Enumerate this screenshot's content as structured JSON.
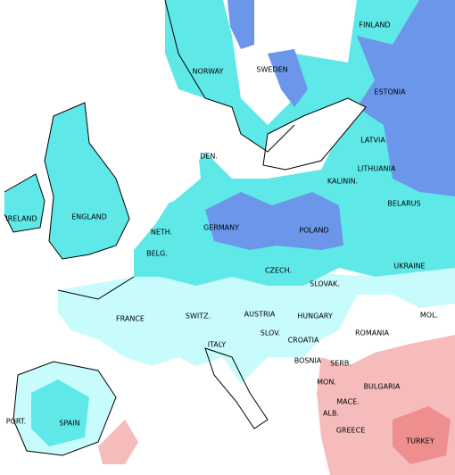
{
  "labels": [
    "FINLAND",
    "NORWAY",
    "SWEDEN",
    "ESTONIA",
    "LATVIA",
    "DEN.",
    "LITHUANIA",
    "KALININ.",
    "BELARUS",
    "IRELAND",
    "ENGLAND",
    "NETH.",
    "GERMANY",
    "POLAND",
    "BELG.",
    "UKRAINE",
    "CZECH.",
    "SLOVAK.",
    "FRANCE",
    "SWITZ.",
    "AUSTRIA",
    "HUNGARY",
    "MOL.",
    "ROMANIA",
    "SLOV.",
    "CROATIA",
    "ITALY",
    "BOSNIA",
    "SERB.",
    "MON.",
    "BULGARIA",
    "MACE.",
    "ALB.",
    "PORT.",
    "SPAIN",
    "GREECE",
    "TURKEY"
  ]
}
